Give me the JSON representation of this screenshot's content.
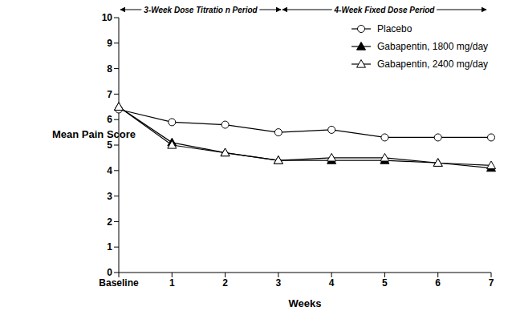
{
  "chart_data": {
    "type": "line",
    "xlabel": "Weeks",
    "ylabel": "Mean Pain Score",
    "annotations": [
      "3-Week Dose Titratio n Period",
      "4-Week Fixed Dose Period"
    ],
    "categories": [
      "Baseline",
      "1",
      "2",
      "3",
      "4",
      "5",
      "6",
      "7"
    ],
    "series": [
      {
        "name": "Placebo",
        "color": "#000000",
        "marker": "circle-open",
        "values": [
          6.4,
          5.9,
          5.8,
          5.5,
          5.6,
          5.3,
          5.3,
          5.3
        ]
      },
      {
        "name": "Gabapentin, 1800 mg/day",
        "color": "#000000",
        "marker": "triangle-filled",
        "values": [
          6.5,
          5.1,
          4.7,
          4.4,
          4.4,
          4.4,
          4.3,
          4.1
        ]
      },
      {
        "name": "Gabapentin, 2400 mg/day",
        "color": "#000000",
        "marker": "triangle-open",
        "values": [
          6.5,
          5.0,
          4.7,
          4.4,
          4.5,
          4.5,
          4.3,
          4.2
        ]
      }
    ],
    "ylim": [
      0,
      10
    ],
    "yticks": [
      0,
      1,
      2,
      3,
      4,
      5,
      6,
      7,
      8,
      9,
      10
    ],
    "grid": false,
    "legend": "upper right"
  }
}
